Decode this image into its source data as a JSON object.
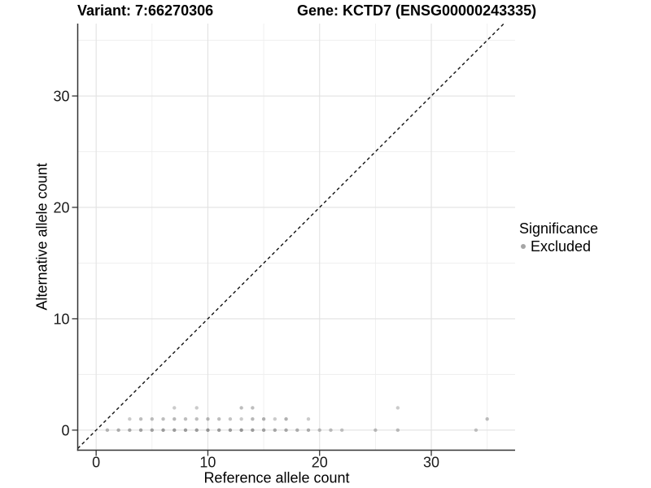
{
  "chart_data": {
    "type": "scatter",
    "titles": {
      "left": "Variant: 7:66270306",
      "right": "Gene: KCTD7 (ENSG00000243335)"
    },
    "xlabel": "Reference allele count",
    "ylabel": "Alternative allele count",
    "xlim": [
      -1.65,
      37.5
    ],
    "ylim": [
      -1.8,
      36.5
    ],
    "x_ticks": [
      0,
      10,
      20,
      30
    ],
    "y_ticks": [
      0,
      10,
      20,
      30
    ],
    "x_minor_ticks": [
      5,
      15,
      25,
      35
    ],
    "y_minor_ticks": [
      5,
      15,
      25,
      35
    ],
    "grid": true,
    "legend_position": "right",
    "colors": {
      "point": "#7d7d7d",
      "grid_major": "#e2e2e2",
      "grid_minor": "#eeeeee",
      "axis": "#333333",
      "identity_line": "#111111",
      "legend_key": "#a6a6a6"
    },
    "identity_line": {
      "slope": 1,
      "intercept": 0,
      "style": "dashed"
    },
    "legend": {
      "title": "Significance",
      "entries": [
        {
          "label": "Excluded",
          "color": "#a6a6a6"
        }
      ]
    },
    "point_radius": 2.2,
    "points": [
      [
        1,
        0,
        0.55
      ],
      [
        2,
        0,
        0.6
      ],
      [
        3,
        0,
        0.65
      ],
      [
        4,
        0,
        0.7
      ],
      [
        5,
        0,
        0.7
      ],
      [
        6,
        0,
        0.75
      ],
      [
        7,
        0,
        0.75
      ],
      [
        8,
        0,
        0.75
      ],
      [
        9,
        0,
        0.75
      ],
      [
        10,
        0,
        0.8
      ],
      [
        11,
        0,
        0.75
      ],
      [
        12,
        0,
        0.75
      ],
      [
        13,
        0,
        0.8
      ],
      [
        14,
        0,
        0.75
      ],
      [
        15,
        0,
        0.7
      ],
      [
        16,
        0,
        0.65
      ],
      [
        17,
        0,
        0.65
      ],
      [
        18,
        0,
        0.6
      ],
      [
        19,
        0,
        0.6
      ],
      [
        20,
        0,
        0.5
      ],
      [
        21,
        0,
        0.5
      ],
      [
        22,
        0,
        0.45
      ],
      [
        25,
        0,
        0.5
      ],
      [
        27,
        0,
        0.5
      ],
      [
        34,
        0,
        0.45
      ],
      [
        3,
        1,
        0.4
      ],
      [
        4,
        1,
        0.5
      ],
      [
        5,
        1,
        0.5
      ],
      [
        6,
        1,
        0.5
      ],
      [
        7,
        1,
        0.55
      ],
      [
        8,
        1,
        0.5
      ],
      [
        9,
        1,
        0.5
      ],
      [
        10,
        1,
        0.55
      ],
      [
        11,
        1,
        0.5
      ],
      [
        12,
        1,
        0.45
      ],
      [
        13,
        1,
        0.4
      ],
      [
        14,
        1,
        0.55
      ],
      [
        15,
        1,
        0.6
      ],
      [
        16,
        1,
        0.4
      ],
      [
        17,
        1,
        0.6
      ],
      [
        19,
        1,
        0.4
      ],
      [
        35,
        1,
        0.5
      ],
      [
        7,
        2,
        0.4
      ],
      [
        9,
        2,
        0.4
      ],
      [
        13,
        2,
        0.5
      ],
      [
        14,
        2,
        0.5
      ],
      [
        27,
        2,
        0.4
      ]
    ]
  }
}
